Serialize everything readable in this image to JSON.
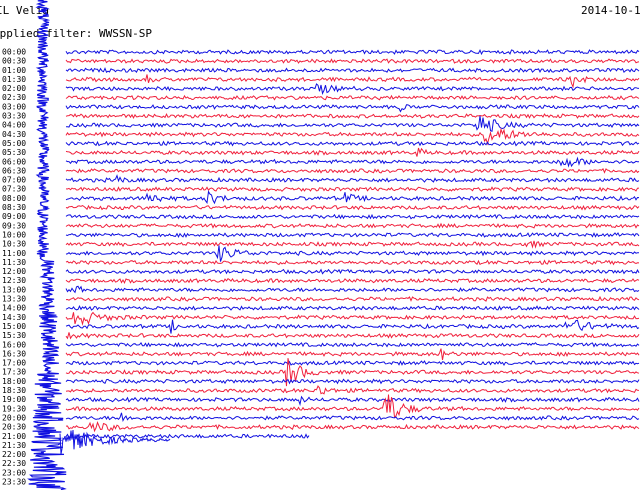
{
  "header": {
    "station": "IL Velia",
    "date": "2014-10-1",
    "filter": "Applied filter: WWSSN-SP"
  },
  "time_labels": [
    "00:00",
    "00:30",
    "01:00",
    "01:30",
    "02:00",
    "02:30",
    "03:00",
    "03:30",
    "04:00",
    "04:30",
    "05:00",
    "05:30",
    "06:00",
    "06:30",
    "07:00",
    "07:30",
    "08:00",
    "08:30",
    "09:00",
    "09:30",
    "10:00",
    "10:30",
    "11:00",
    "11:30",
    "12:00",
    "12:30",
    "13:00",
    "13:30",
    "14:00",
    "14:30",
    "15:00",
    "15:30",
    "16:00",
    "16:30",
    "17:00",
    "17:30",
    "18:00",
    "18:30",
    "19:00",
    "19:30",
    "20:00",
    "20:30",
    "21:00",
    "21:30",
    "22:00",
    "22:30",
    "23:00",
    "23:30"
  ]
}
